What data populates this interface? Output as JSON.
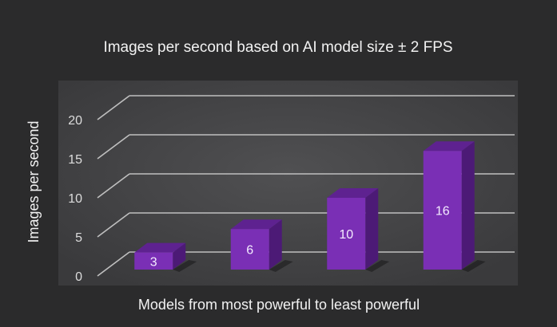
{
  "chart_data": {
    "type": "bar",
    "title": "Images per second based on AI model size ± 2 FPS",
    "xlabel": "Models from most powerful to least powerful",
    "ylabel": "Images per second",
    "categories": [
      "",
      "",
      "",
      ""
    ],
    "values": [
      3,
      6,
      10,
      16
    ],
    "data_labels": [
      "3",
      "6",
      "10",
      "16"
    ],
    "yticks": [
      "0",
      "5",
      "10",
      "15",
      "20"
    ],
    "ylim": [
      0,
      20
    ],
    "grid": true,
    "legend": "none",
    "style": "3d-column",
    "colors": {
      "bar_front": "#7a2fb5",
      "bar_top": "#5e2290",
      "bar_side": "#4c1a76",
      "plot_bg": "#474749",
      "page_bg": "#2b2b2c",
      "grid": "#bfbfbf"
    }
  }
}
